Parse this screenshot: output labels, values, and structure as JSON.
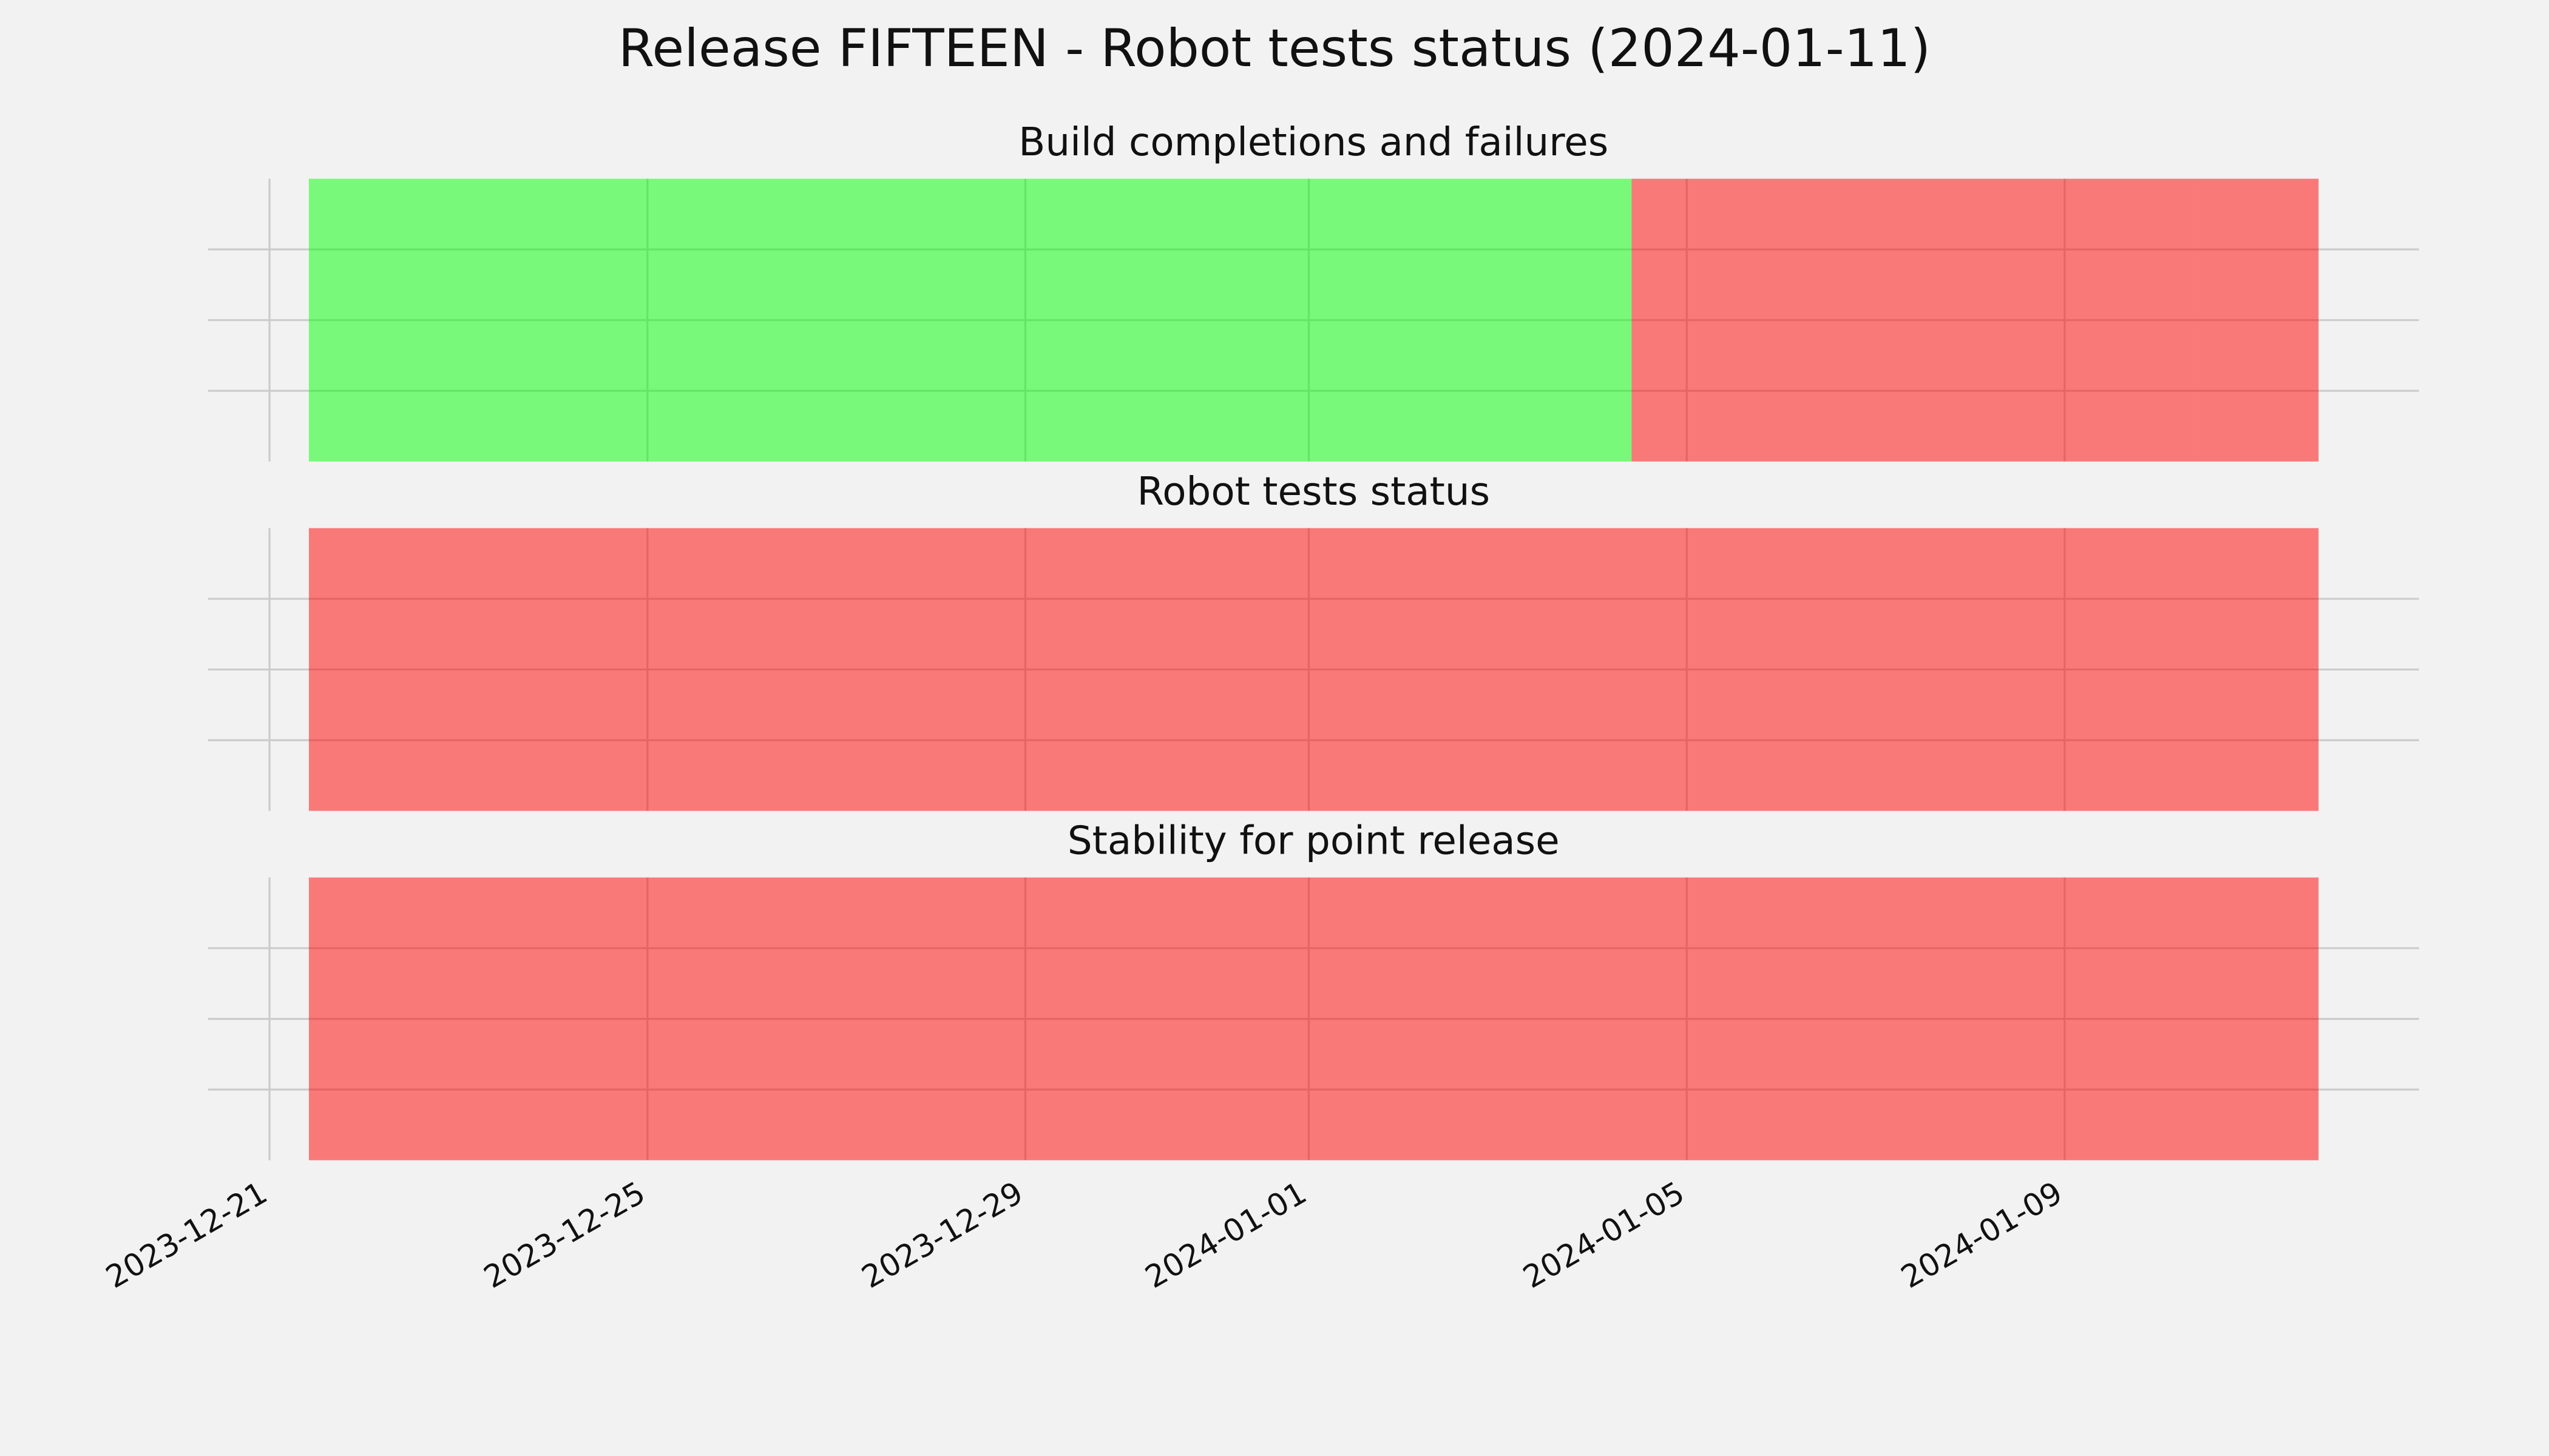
{
  "title": "Release FIFTEEN - Robot tests status (2024-01-11)",
  "chart_data": [
    {
      "type": "timeline",
      "title": "Build completions and failures",
      "spans": [
        {
          "start": "2023-12-21T10:00",
          "end": "2024-01-04T10:00",
          "color": "#00ff00"
        },
        {
          "start": "2024-01-04T10:00",
          "end": "2024-01-10T10:00",
          "color": "#ff0000"
        },
        {
          "start": "2024-01-10T10:00",
          "end": "2024-01-11T16:30",
          "color": "#ff0000"
        }
      ]
    },
    {
      "type": "timeline",
      "title": "Robot tests status",
      "spans": [
        {
          "start": "2023-12-21T10:00",
          "end": "2024-01-11T16:30",
          "color": "#ff0000"
        }
      ]
    },
    {
      "type": "timeline",
      "title": "Stability for point release",
      "spans": [
        {
          "start": "2023-12-21T10:00",
          "end": "2024-01-11T16:30",
          "color": "#ff0000"
        }
      ]
    }
  ],
  "xlim": [
    "2023-12-20T08:24",
    "2024-01-12T18:00"
  ],
  "xticks": [
    "2023-12-21",
    "2023-12-25",
    "2023-12-29",
    "2024-01-01",
    "2024-01-05",
    "2024-01-09"
  ],
  "ylim": [
    0,
    1
  ],
  "yticks": [
    0.25,
    0.5,
    0.75
  ],
  "alpha": 0.5,
  "grid": true
}
